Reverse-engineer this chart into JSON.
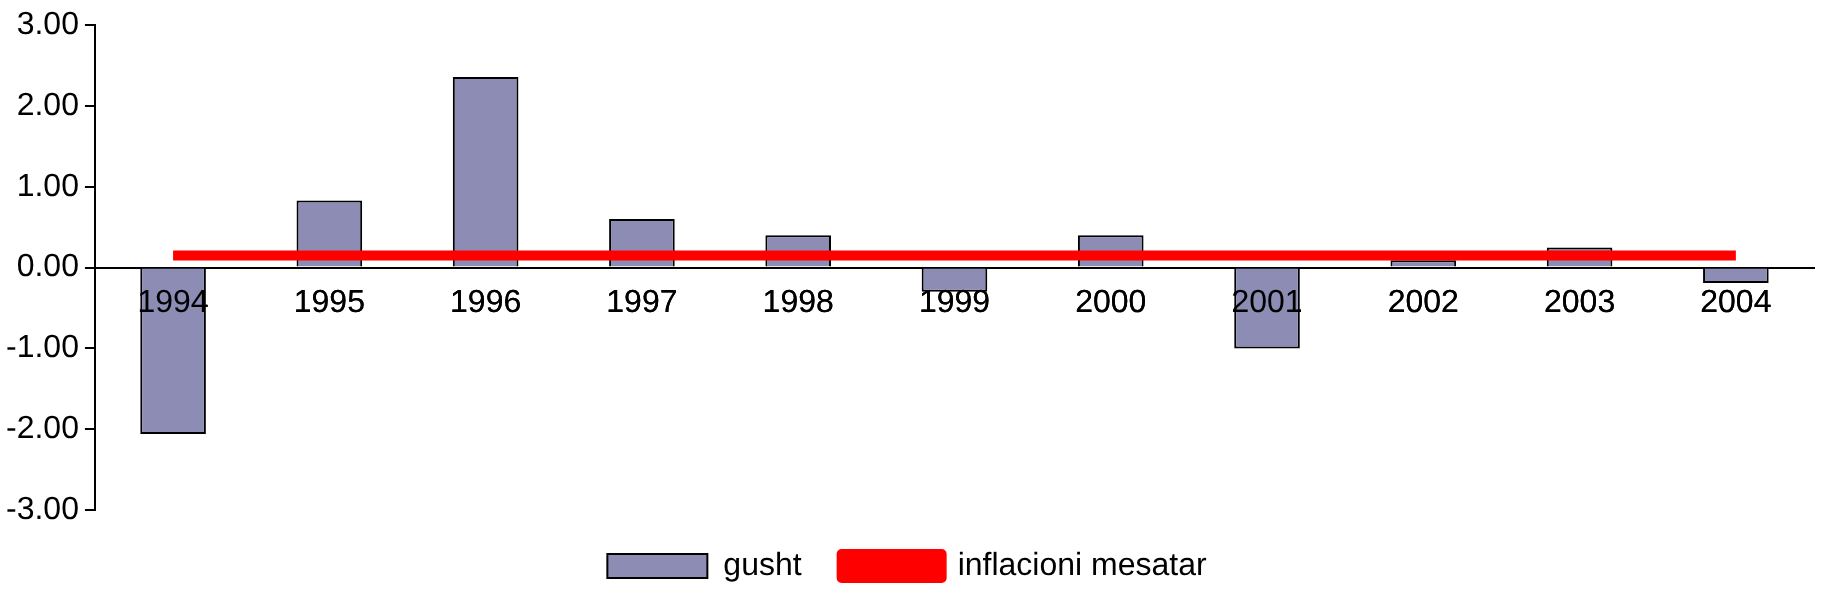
{
  "chart_data": {
    "type": "bar",
    "categories": [
      "1994",
      "1995",
      "1996",
      "1997",
      "1998",
      "1999",
      "2000",
      "2001",
      "2002",
      "2003",
      "2004"
    ],
    "series": [
      {
        "name": "gusht",
        "color": "#8c8cb4",
        "values": [
          -2.06,
          0.83,
          2.36,
          0.6,
          0.4,
          -0.3,
          0.4,
          -1.0,
          0.09,
          0.25,
          -0.19
        ]
      },
      {
        "name": "inflacioni mesatar",
        "type": "line",
        "color": "#ff0000",
        "values": [
          0.15,
          0.15,
          0.15,
          0.15,
          0.15,
          0.15,
          0.15,
          0.15,
          0.15,
          0.15,
          0.15
        ]
      }
    ],
    "ylim": [
      -3,
      3
    ],
    "yticks": [
      {
        "value": -3,
        "label": "-3.00"
      },
      {
        "value": -2,
        "label": "-2.00"
      },
      {
        "value": -1,
        "label": "-1.00"
      },
      {
        "value": 0,
        "label": "0.00"
      },
      {
        "value": 1,
        "label": "1.00"
      },
      {
        "value": 2,
        "label": "2.00"
      },
      {
        "value": 3,
        "label": "3.00"
      }
    ],
    "grid": false,
    "legend": "bottom",
    "marker": "none"
  }
}
